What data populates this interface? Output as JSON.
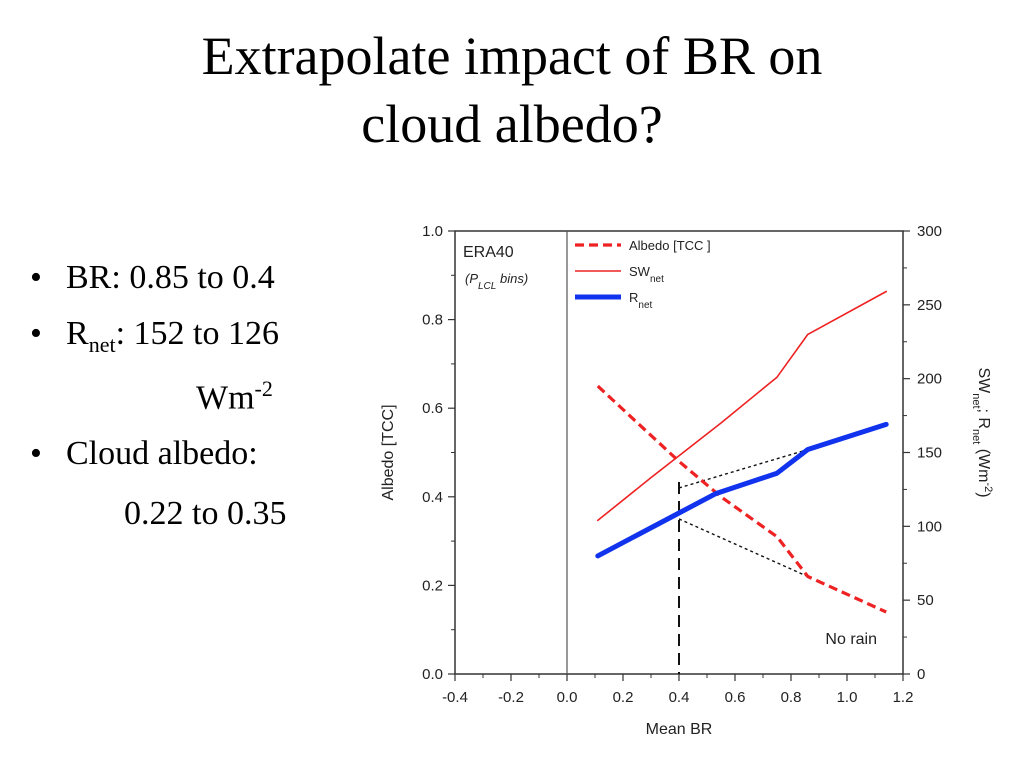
{
  "slide": {
    "title_line1": "Extrapolate impact of BR on",
    "title_line2": "cloud albedo?"
  },
  "bullets": [
    {
      "label": "BR:",
      "value": "0.85 to 0.4"
    },
    {
      "label": "R",
      "label_sub": "net",
      "value": ": 152 to 126",
      "unit": "Wm",
      "unit_sup": "-2"
    },
    {
      "label": "Cloud albedo:",
      "value": "0.22 to 0.35"
    }
  ],
  "chart_data": {
    "type": "line",
    "xlabel": "Mean BR",
    "ylabel_left": "Albedo [TCC]",
    "ylabel_right": "SWnet; Rnet (Wm-2)",
    "xlim": [
      -0.4,
      1.2
    ],
    "ylim_left": [
      0.0,
      1.0
    ],
    "ylim_right": [
      0,
      300
    ],
    "x_ticks": [
      "-0.4",
      "-0.2",
      "0.0",
      "0.2",
      "0.4",
      "0.6",
      "0.8",
      "1.0",
      "1.2"
    ],
    "y_left_ticks": [
      "0.0",
      "0.2",
      "0.4",
      "0.6",
      "0.8",
      "1.0"
    ],
    "y_right_ticks": [
      "0",
      "50",
      "100",
      "150",
      "200",
      "250",
      "300"
    ],
    "annotations": {
      "dataset": "ERA40",
      "bins": "(P",
      "bins_sub": "LCL",
      "bins_rest": " bins)",
      "no_rain": "No rain"
    },
    "legend_position": "top",
    "series": [
      {
        "name": "Albedo [TCC ]",
        "axis": "left",
        "style": "dashed",
        "color": "#ee2222",
        "x": [
          0.11,
          0.4,
          0.55,
          0.75,
          0.86,
          1.14
        ],
        "y": [
          0.65,
          0.48,
          0.4,
          0.31,
          0.22,
          0.14
        ]
      },
      {
        "name": "SW",
        "name_sub": "net",
        "axis": "right",
        "style": "solid",
        "color": "#ee2222",
        "x": [
          0.11,
          0.3,
          0.55,
          0.75,
          0.86,
          1.14
        ],
        "y": [
          104,
          133,
          170,
          201,
          230,
          259
        ]
      },
      {
        "name": "R",
        "name_sub": "net",
        "axis": "right",
        "style": "thick",
        "color": "#1133ee",
        "x": [
          0.11,
          0.4,
          0.53,
          0.75,
          0.86,
          1.14
        ],
        "y": [
          80,
          109,
          122,
          136,
          152,
          169
        ]
      }
    ],
    "guides": {
      "vertical_x": 0.4,
      "dotted_albedo": [
        [
          0.4,
          0.35
        ],
        [
          0.86,
          0.22
        ]
      ],
      "dotted_rnet": [
        [
          0.4,
          126
        ],
        [
          0.86,
          152
        ]
      ]
    }
  }
}
